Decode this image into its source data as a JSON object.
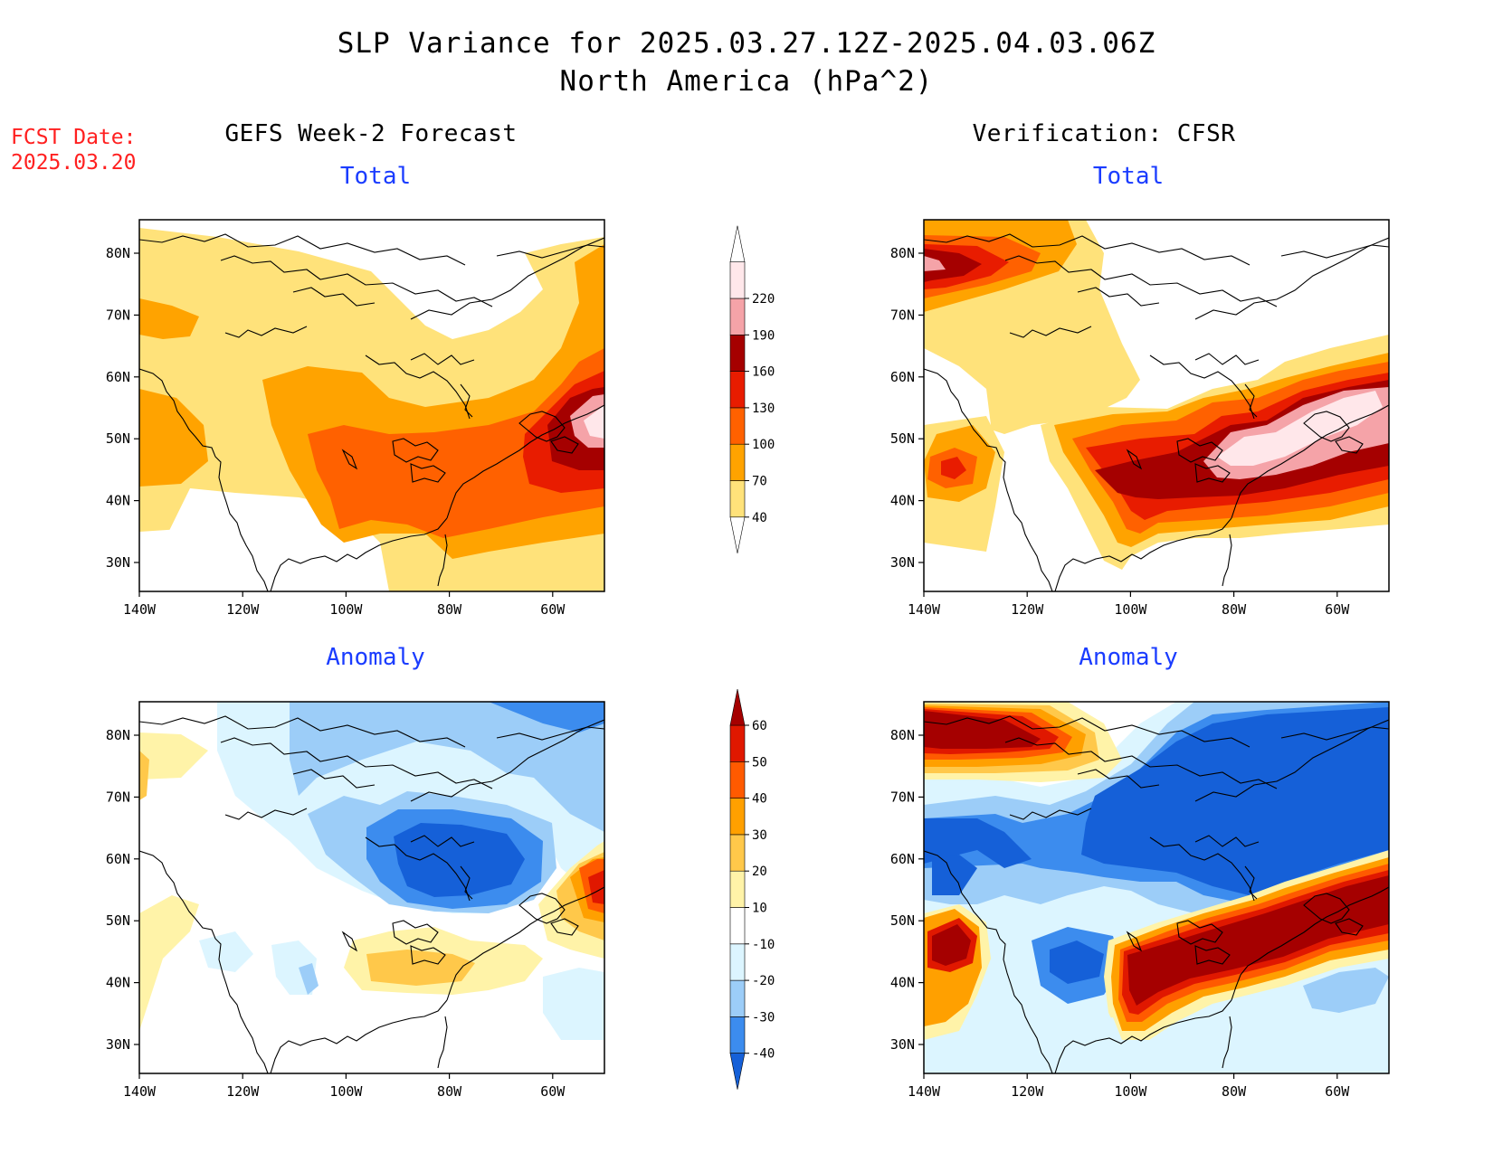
{
  "header": {
    "title": "SLP Variance for 2025.03.27.12Z-2025.04.03.06Z",
    "subtitle": "North America (hPa^2)"
  },
  "fcst": {
    "label": "FCST Date:",
    "date": "2025.03.20"
  },
  "columns": {
    "left": "GEFS Week-2 Forecast",
    "right": "Verification: CFSR"
  },
  "panels": {
    "total": "Total",
    "anomaly": "Anomaly"
  },
  "axes": {
    "lat_ticks": [
      "80N",
      "70N",
      "60N",
      "50N",
      "40N",
      "30N"
    ],
    "lon_ticks": [
      "140W",
      "120W",
      "100W",
      "80W",
      "60W"
    ]
  },
  "colorbars": {
    "total": {
      "levels": [
        "40",
        "70",
        "100",
        "130",
        "160",
        "190",
        "220"
      ],
      "colors": [
        "#ffe27a",
        "#ffa300",
        "#ff6100",
        "#e81c00",
        "#a50000",
        "#f5a3a8",
        "#ffe7ea"
      ]
    },
    "anomaly": {
      "levels": [
        "-40",
        "-30",
        "-20",
        "-10",
        "10",
        "20",
        "30",
        "40",
        "50",
        "60"
      ],
      "colors": [
        "#1560d8",
        "#3c8cee",
        "#9ccdf8",
        "#dcf5ff",
        "#ffffff",
        "#fff3a8",
        "#ffc84a",
        "#ffa000",
        "#ff5a00",
        "#e01800",
        "#a50000"
      ]
    }
  }
}
